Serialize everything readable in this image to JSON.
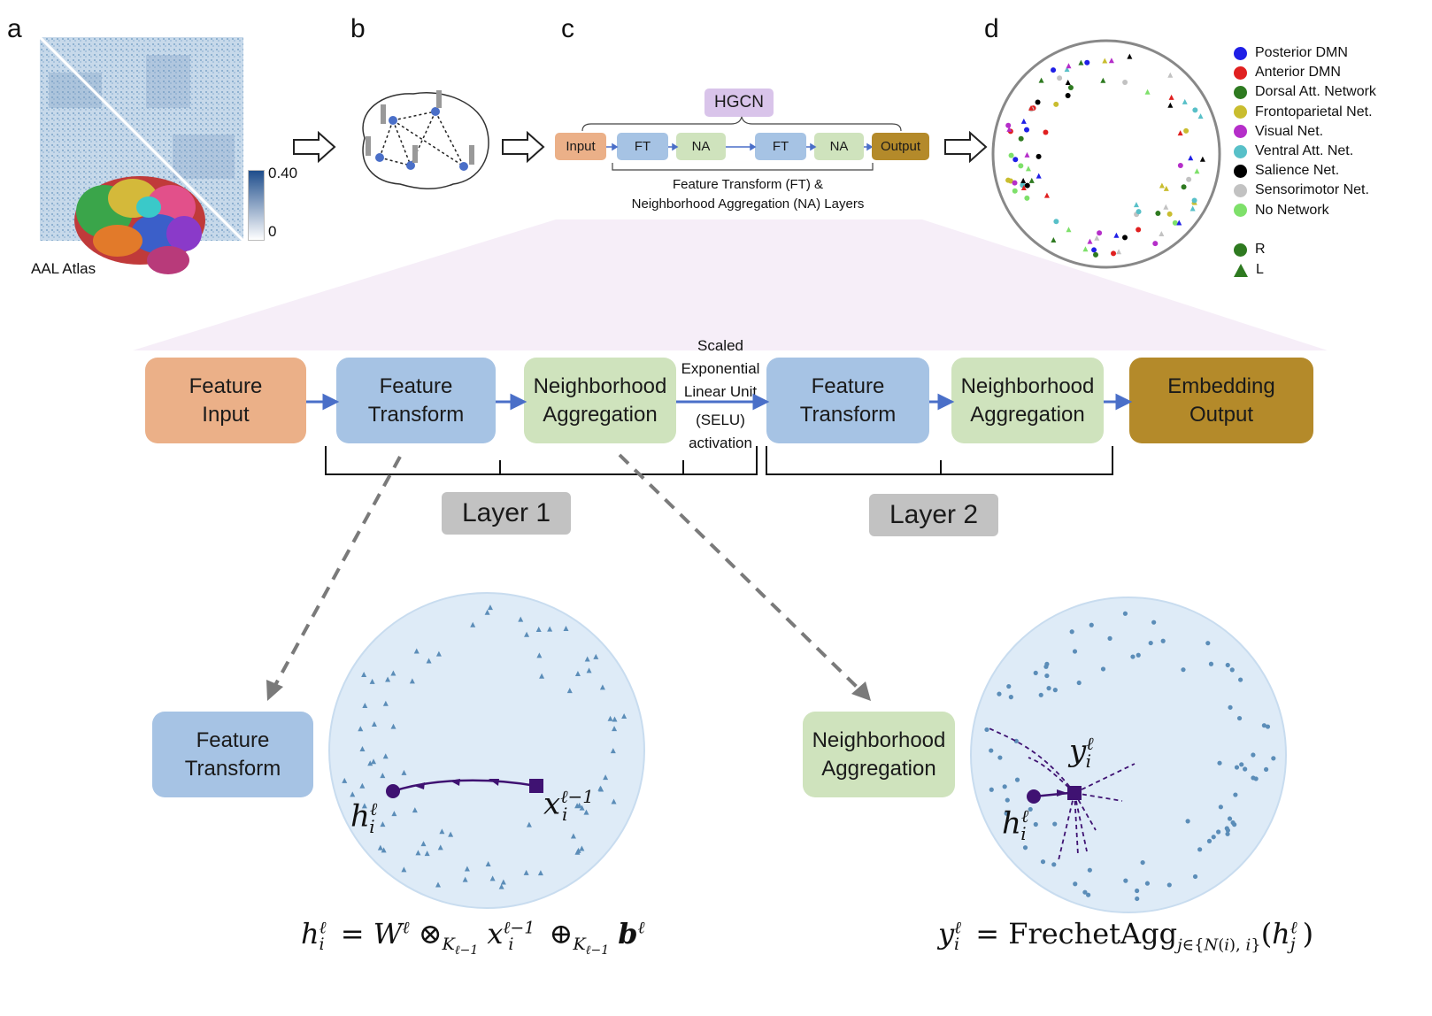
{
  "panel_labels": {
    "a": "a",
    "b": "b",
    "c": "c",
    "d": "d"
  },
  "panel_a": {
    "atlas_label": "AAL Atlas",
    "colorbar_max": "0.40",
    "colorbar_min": "0"
  },
  "panel_c": {
    "hgcn_label": "HGCN",
    "input": "Input",
    "ft1": "FT",
    "na1": "NA",
    "ft2": "FT",
    "na2": "NA",
    "output": "Output",
    "caption_line1": "Feature Transform (FT) &",
    "caption_line2": "Neighborhood Aggregation (NA) Layers"
  },
  "legend": {
    "networks": [
      {
        "label": "Posterior DMN",
        "color": "#1f1fe6"
      },
      {
        "label": "Anterior DMN",
        "color": "#e02020"
      },
      {
        "label": "Dorsal Att. Network",
        "color": "#2e7a20"
      },
      {
        "label": "Frontoparietal Net.",
        "color": "#c9bd2f"
      },
      {
        "label": "Visual Net.",
        "color": "#b52ec9"
      },
      {
        "label": "Ventral Att. Net.",
        "color": "#58c0c8"
      },
      {
        "label": "Salience Net.",
        "color": "#000000"
      },
      {
        "label": "Sensorimotor Net.",
        "color": "#c2c2c2"
      },
      {
        "label": "No Network",
        "color": "#7ee06a"
      }
    ],
    "shapes": [
      {
        "label": "R",
        "shape": "circle"
      },
      {
        "label": "L",
        "shape": "triangle"
      }
    ],
    "shape_color": "#2e7a20"
  },
  "pipeline": {
    "feature_input": "Feature\nInput",
    "feature_transform_1": "Feature\nTransform",
    "neighborhood_aggregation_1": "Neighborhood\nAggregation",
    "activation_lines": [
      "Scaled",
      "Exponential",
      "Linear Unit",
      "(SELU)",
      "activation"
    ],
    "feature_transform_2": "Feature\nTransform",
    "neighborhood_aggregation_2": "Neighborhood\nAggregation",
    "embedding_output": "Embedding\nOutput",
    "layer1": "Layer 1",
    "layer2": "Layer 2"
  },
  "bottom": {
    "ft_box": "Feature\nTransform",
    "na_box": "Neighborhood\nAggregation",
    "ft_disk_labels": {
      "h": "h",
      "h_sup": "ℓ",
      "h_sub": "i",
      "x": "x",
      "x_sup": "ℓ−1",
      "x_sub": "i"
    },
    "na_disk_labels": {
      "y": "y",
      "y_sup": "ℓ",
      "y_sub": "i",
      "h": "h",
      "h_sup": "ℓ",
      "h_sub": "i"
    }
  },
  "colors": {
    "disk_fill": "#deebf7",
    "point_color": "#5b8db8",
    "path_color": "#3f1272",
    "arrow_blue": "#4a6fc8"
  }
}
